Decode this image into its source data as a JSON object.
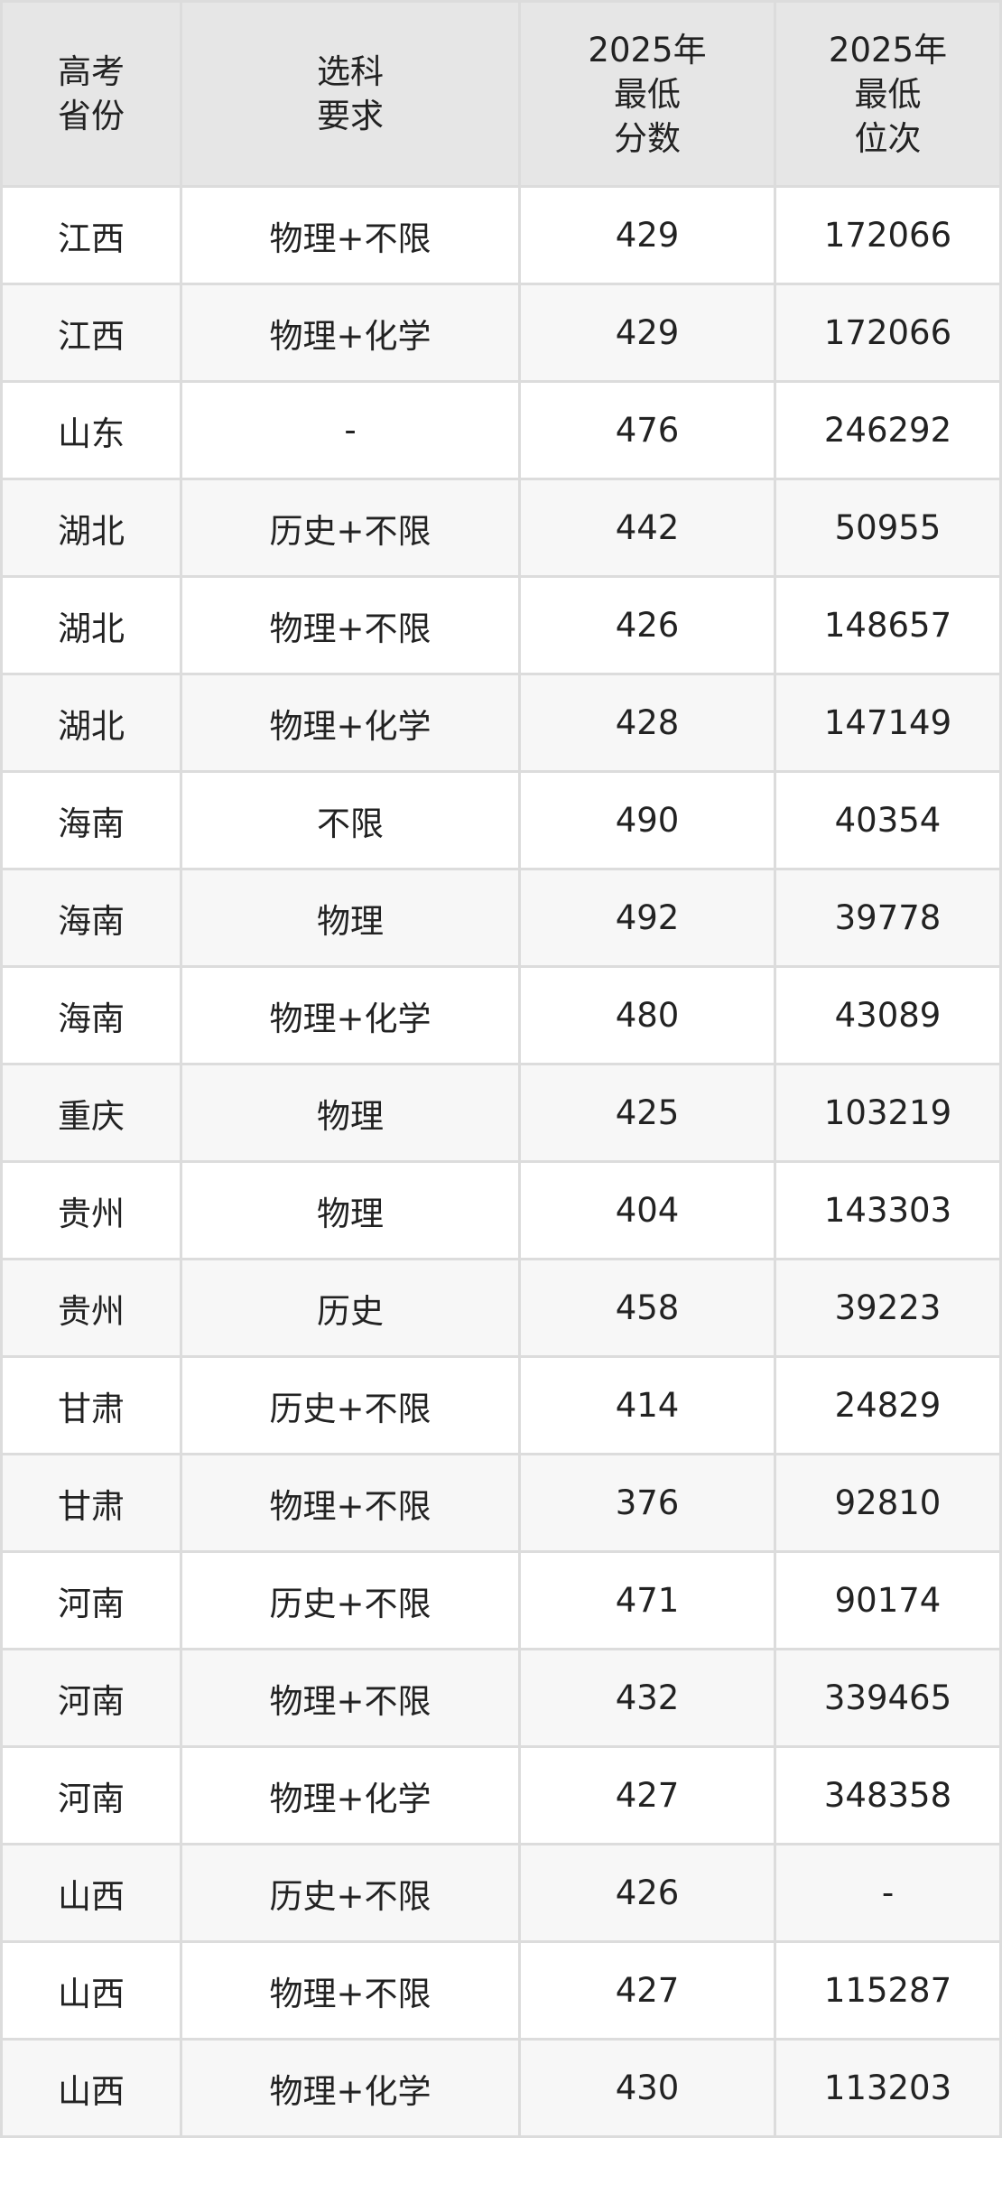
{
  "header": {
    "province": [
      "高考",
      "省份"
    ],
    "subject": [
      "选科",
      "要求"
    ],
    "min_score": [
      "2025年",
      "最低",
      "分数"
    ],
    "min_rank": [
      "2025年",
      "最低",
      "位次"
    ]
  },
  "rows": [
    {
      "province": "江西",
      "subject": "物理+不限",
      "score": "429",
      "rank": "172066"
    },
    {
      "province": "江西",
      "subject": "物理+化学",
      "score": "429",
      "rank": "172066"
    },
    {
      "province": "山东",
      "subject": "-",
      "score": "476",
      "rank": "246292"
    },
    {
      "province": "湖北",
      "subject": "历史+不限",
      "score": "442",
      "rank": "50955"
    },
    {
      "province": "湖北",
      "subject": "物理+不限",
      "score": "426",
      "rank": "148657"
    },
    {
      "province": "湖北",
      "subject": "物理+化学",
      "score": "428",
      "rank": "147149"
    },
    {
      "province": "海南",
      "subject": "不限",
      "score": "490",
      "rank": "40354"
    },
    {
      "province": "海南",
      "subject": "物理",
      "score": "492",
      "rank": "39778"
    },
    {
      "province": "海南",
      "subject": "物理+化学",
      "score": "480",
      "rank": "43089"
    },
    {
      "province": "重庆",
      "subject": "物理",
      "score": "425",
      "rank": "103219"
    },
    {
      "province": "贵州",
      "subject": "物理",
      "score": "404",
      "rank": "143303"
    },
    {
      "province": "贵州",
      "subject": "历史",
      "score": "458",
      "rank": "39223"
    },
    {
      "province": "甘肃",
      "subject": "历史+不限",
      "score": "414",
      "rank": "24829"
    },
    {
      "province": "甘肃",
      "subject": "物理+不限",
      "score": "376",
      "rank": "92810"
    },
    {
      "province": "河南",
      "subject": "历史+不限",
      "score": "471",
      "rank": "90174"
    },
    {
      "province": "河南",
      "subject": "物理+不限",
      "score": "432",
      "rank": "339465"
    },
    {
      "province": "河南",
      "subject": "物理+化学",
      "score": "427",
      "rank": "348358"
    },
    {
      "province": "山西",
      "subject": "历史+不限",
      "score": "426",
      "rank": "-"
    },
    {
      "province": "山西",
      "subject": "物理+不限",
      "score": "427",
      "rank": "115287"
    },
    {
      "province": "山西",
      "subject": "物理+化学",
      "score": "430",
      "rank": "113203"
    }
  ]
}
